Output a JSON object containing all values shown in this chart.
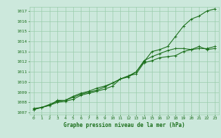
{
  "title": "Graphe pression niveau de la mer (hPa)",
  "xlabel_hours": [
    0,
    1,
    2,
    3,
    4,
    5,
    6,
    7,
    8,
    9,
    10,
    11,
    12,
    13,
    14,
    15,
    16,
    17,
    18,
    19,
    20,
    21,
    22,
    23
  ],
  "ylim": [
    1006.8,
    1017.4
  ],
  "yticks": [
    1007,
    1008,
    1009,
    1010,
    1011,
    1012,
    1013,
    1014,
    1015,
    1016,
    1017
  ],
  "line1": [
    1007.3,
    1007.5,
    1007.7,
    1008.0,
    1008.1,
    1008.3,
    1008.7,
    1008.9,
    1009.1,
    1009.3,
    1009.6,
    1010.3,
    1010.5,
    1011.0,
    1012.0,
    1013.0,
    1013.2,
    1013.5,
    1014.5,
    1015.5,
    1016.2,
    1016.5,
    1017.0,
    1017.2
  ],
  "line2": [
    1007.4,
    1007.5,
    1007.8,
    1008.1,
    1008.2,
    1008.5,
    1008.8,
    1009.0,
    1009.2,
    1009.5,
    1009.9,
    1010.3,
    1010.6,
    1011.0,
    1012.1,
    1012.5,
    1012.8,
    1013.1,
    1013.3,
    1013.3,
    1013.2,
    1013.5,
    1013.2,
    1013.3
  ],
  "line3": [
    1007.3,
    1007.5,
    1007.7,
    1008.2,
    1008.2,
    1008.6,
    1008.9,
    1009.1,
    1009.4,
    1009.6,
    1009.9,
    1010.3,
    1010.6,
    1010.8,
    1011.9,
    1012.1,
    1012.4,
    1012.5,
    1012.6,
    1013.0,
    1013.2,
    1013.3,
    1013.3,
    1013.5
  ],
  "line_color": "#1a6e1a",
  "bg_color": "#cce8dc",
  "grid_color": "#99ccaa",
  "title_color": "#1a6e1a",
  "marker": "+",
  "marker_size": 3,
  "linewidth": 0.8
}
